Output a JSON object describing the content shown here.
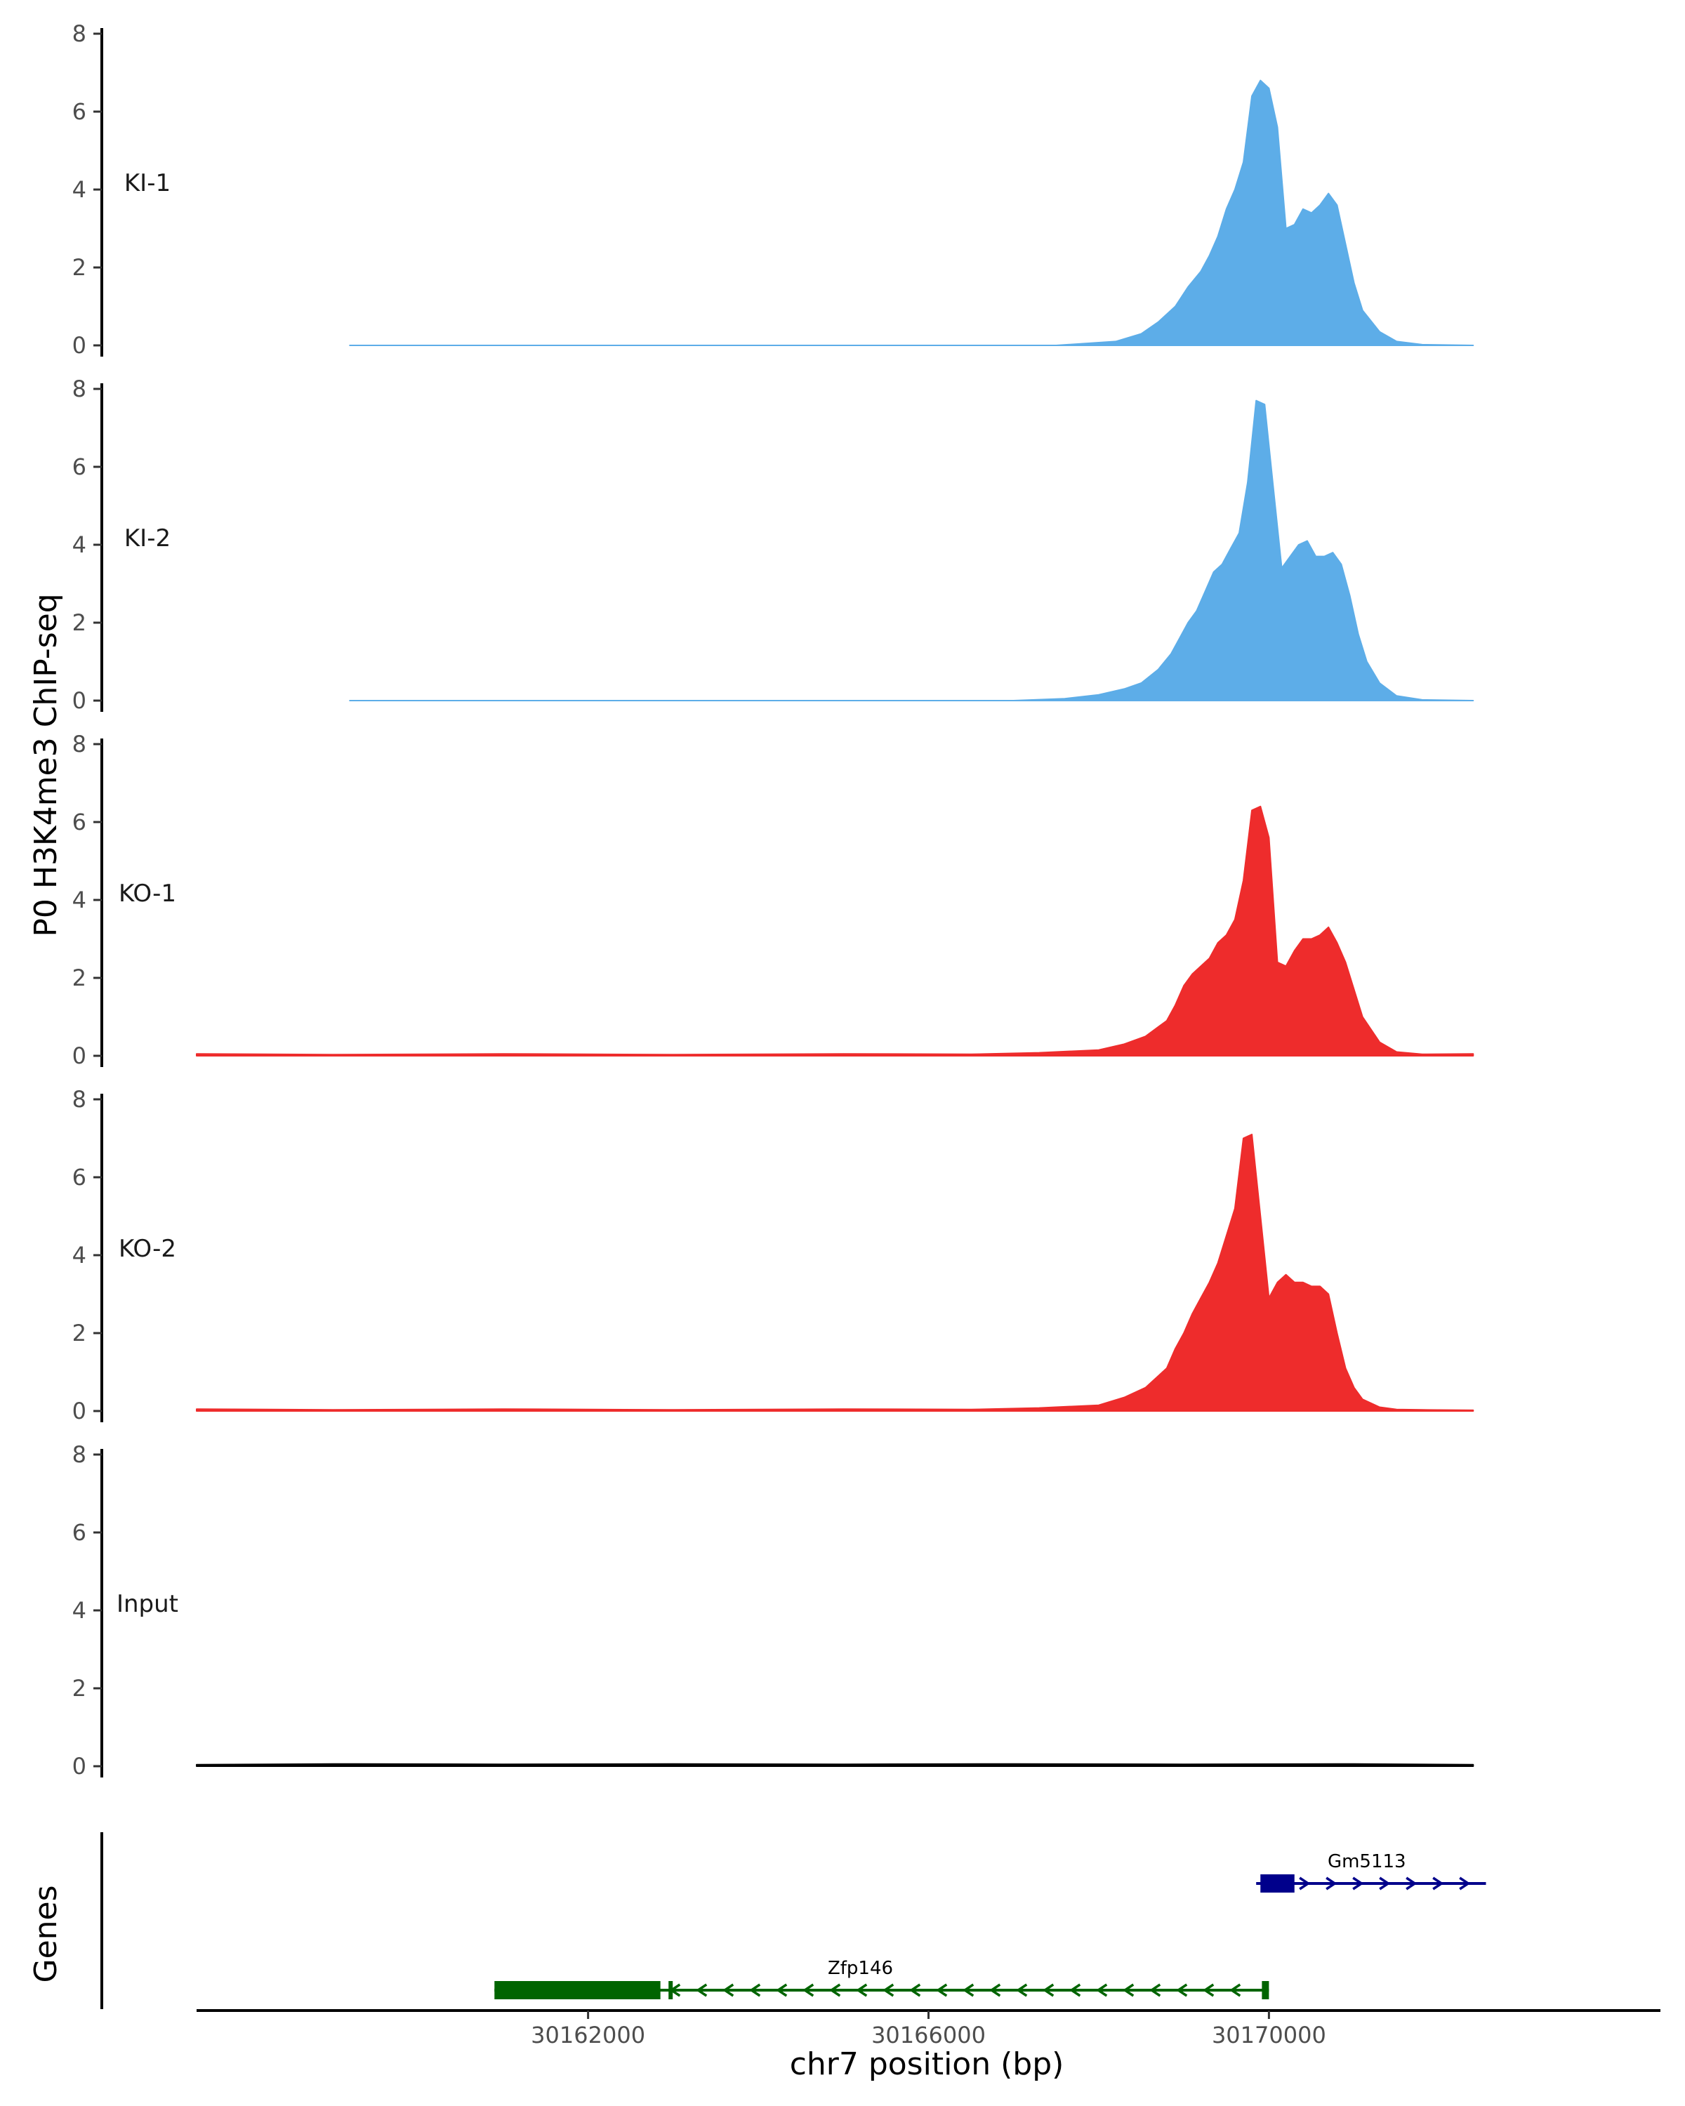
{
  "chart_data": {
    "type": "area",
    "ylabel": "P0 H3K4me3 ChIP-seq",
    "xlabel": "chr7 position (bp)",
    "genes_label": "Genes",
    "x_range": [
      30157400,
      30174600
    ],
    "ylim": [
      0,
      8
    ],
    "yticks": [
      0,
      2,
      4,
      6,
      8
    ],
    "xticks": [
      {
        "value": 30162000,
        "label": "30162000"
      },
      {
        "value": 30166000,
        "label": "30166000"
      },
      {
        "value": 30170000,
        "label": "30170000"
      }
    ],
    "colors": {
      "KI": "#5dade8",
      "KO": "#ee2c2c",
      "Input": "#000000",
      "gene_minus": "#006400",
      "gene_plus": "#00008b"
    },
    "tracks": [
      {
        "name": "KI-1",
        "color": "#5dade8",
        "x": [
          30159200,
          30160500,
          30162000,
          30163500,
          30165000,
          30166500,
          30167500,
          30168200,
          30168500,
          30168700,
          30168900,
          30169050,
          30169200,
          30169300,
          30169400,
          30169500,
          30169600,
          30169700,
          30169800,
          30169900,
          30170000,
          30170100,
          30170200,
          30170300,
          30170400,
          30170500,
          30170600,
          30170700,
          30170800,
          30170900,
          30171000,
          30171100,
          30171300,
          30171500,
          30171800,
          30172400
        ],
        "values": [
          0,
          0,
          0,
          0,
          0,
          0,
          0,
          0.1,
          0.3,
          0.6,
          1.0,
          1.5,
          1.9,
          2.3,
          2.8,
          3.5,
          4.0,
          4.7,
          6.4,
          6.8,
          6.6,
          5.6,
          3.0,
          3.1,
          3.5,
          3.4,
          3.6,
          3.9,
          3.6,
          2.6,
          1.6,
          0.9,
          0.35,
          0.1,
          0.02,
          0
        ]
      },
      {
        "name": "KI-2",
        "color": "#5dade8",
        "x": [
          30159200,
          30160500,
          30162000,
          30163500,
          30165000,
          30166500,
          30167000,
          30167600,
          30168000,
          30168300,
          30168500,
          30168700,
          30168850,
          30168950,
          30169050,
          30169150,
          30169250,
          30169350,
          30169450,
          30169550,
          30169650,
          30169750,
          30169850,
          30169950,
          30170050,
          30170150,
          30170250,
          30170350,
          30170450,
          30170550,
          30170650,
          30170750,
          30170850,
          30170950,
          30171050,
          30171150,
          30171300,
          30171500,
          30171800,
          30172400
        ],
        "values": [
          0,
          0,
          0,
          0,
          0,
          0,
          0,
          0.05,
          0.15,
          0.3,
          0.45,
          0.8,
          1.2,
          1.6,
          2.0,
          2.3,
          2.8,
          3.3,
          3.5,
          3.9,
          4.3,
          5.6,
          7.7,
          7.6,
          5.5,
          3.4,
          3.7,
          4.0,
          4.1,
          3.7,
          3.7,
          3.8,
          3.5,
          2.7,
          1.7,
          1.0,
          0.45,
          0.12,
          0.02,
          0
        ]
      },
      {
        "name": "KO-1",
        "color": "#ee2c2c",
        "x": [
          30157400,
          30159000,
          30161000,
          30163000,
          30165000,
          30166500,
          30167300,
          30168000,
          30168300,
          30168550,
          30168800,
          30168900,
          30169000,
          30169100,
          30169200,
          30169300,
          30169400,
          30169500,
          30169600,
          30169700,
          30169800,
          30169900,
          30170000,
          30170100,
          30170200,
          30170300,
          30170400,
          30170500,
          30170600,
          30170700,
          30170800,
          30170900,
          30171000,
          30171100,
          30171300,
          30171500,
          30171800,
          30172400
        ],
        "values": [
          0.05,
          0.03,
          0.05,
          0.03,
          0.05,
          0.04,
          0.08,
          0.15,
          0.3,
          0.5,
          0.9,
          1.3,
          1.8,
          2.1,
          2.3,
          2.5,
          2.9,
          3.1,
          3.5,
          4.5,
          6.3,
          6.4,
          5.6,
          2.4,
          2.3,
          2.7,
          3.0,
          3.0,
          3.1,
          3.3,
          2.9,
          2.4,
          1.7,
          1.0,
          0.35,
          0.1,
          0.04,
          0.05
        ]
      },
      {
        "name": "KO-2",
        "color": "#ee2c2c",
        "x": [
          30157400,
          30159000,
          30161000,
          30163000,
          30165000,
          30166500,
          30167300,
          30168000,
          30168300,
          30168550,
          30168800,
          30168900,
          30169000,
          30169100,
          30169200,
          30169300,
          30169400,
          30169500,
          30169600,
          30169700,
          30169800,
          30169900,
          30170000,
          30170100,
          30170200,
          30170300,
          30170400,
          30170500,
          30170600,
          30170700,
          30170800,
          30170900,
          30171000,
          30171100,
          30171300,
          30171500,
          30171800,
          30172400
        ],
        "values": [
          0.05,
          0.03,
          0.05,
          0.03,
          0.05,
          0.04,
          0.08,
          0.15,
          0.35,
          0.6,
          1.1,
          1.6,
          2.0,
          2.5,
          2.9,
          3.3,
          3.8,
          4.5,
          5.2,
          7.0,
          7.1,
          5.0,
          2.9,
          3.3,
          3.5,
          3.3,
          3.3,
          3.2,
          3.2,
          3.0,
          2.0,
          1.1,
          0.6,
          0.3,
          0.1,
          0.04,
          0.03,
          0.02
        ]
      },
      {
        "name": "Input",
        "color": "#000000",
        "x": [
          30157400,
          30159000,
          30161000,
          30163000,
          30165000,
          30167000,
          30169000,
          30171000,
          30172400
        ],
        "values": [
          0.04,
          0.06,
          0.05,
          0.06,
          0.05,
          0.06,
          0.05,
          0.06,
          0.04
        ]
      }
    ],
    "genes": [
      {
        "name": "Zfp146",
        "strand": "-",
        "color": "#006400",
        "start": 30160900,
        "end": 30170000,
        "thick": [
          30160900,
          30162850
        ]
      },
      {
        "name": "Gm5113",
        "strand": "+",
        "color": "#00008b",
        "start": 30169850,
        "end": 30172550,
        "thick": [
          30169900,
          30170300
        ]
      }
    ]
  }
}
